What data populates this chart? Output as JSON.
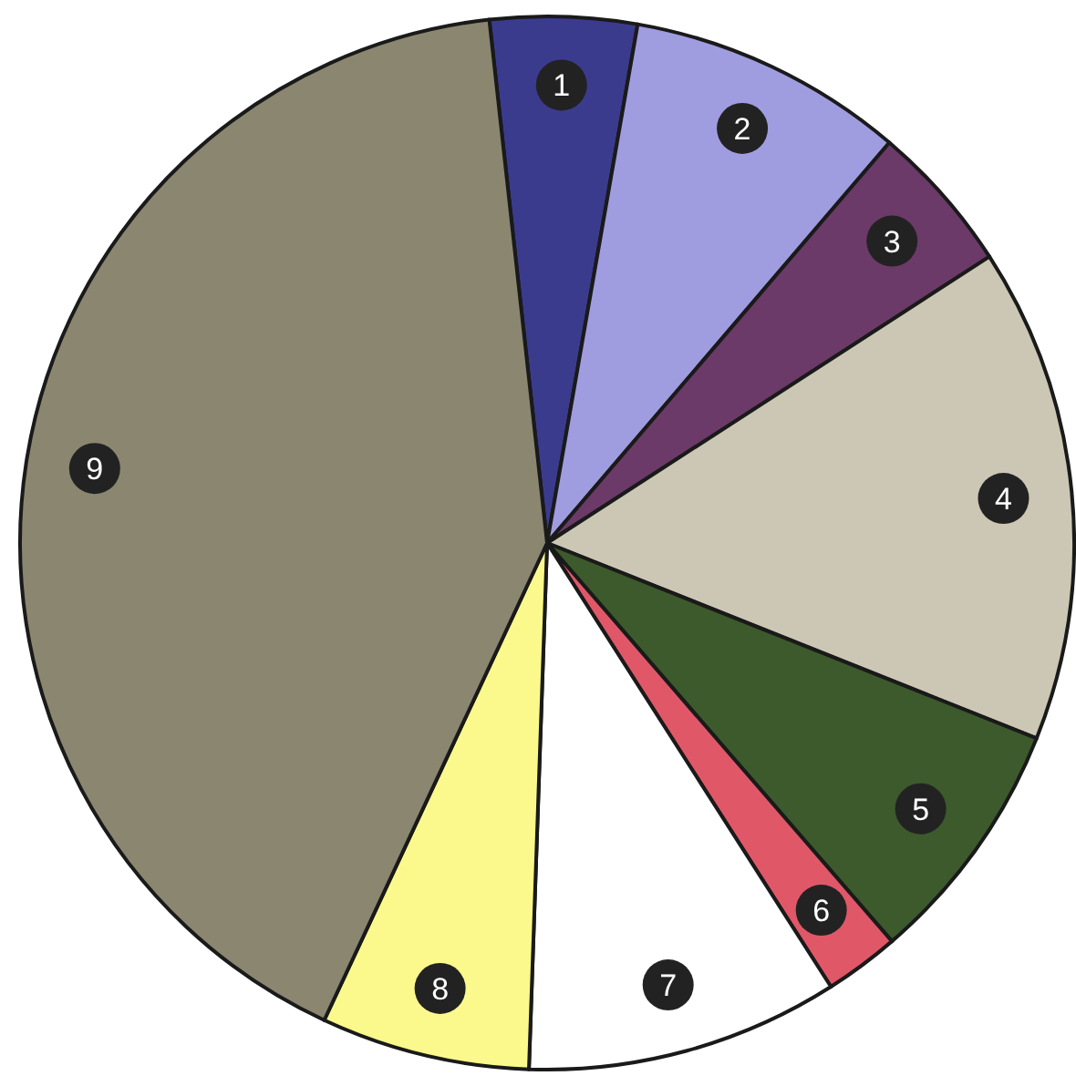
{
  "chart_data": {
    "type": "pie",
    "categories": [
      "1",
      "2",
      "3",
      "4",
      "5",
      "6",
      "7",
      "8",
      "9"
    ],
    "values": [
      4.5,
      8.5,
      4.6,
      15.2,
      7.6,
      2.3,
      9.6,
      6.4,
      41.3
    ],
    "colors": [
      "#3b3b8e",
      "#a09ce0",
      "#6b3a68",
      "#cbc7b4",
      "#3c5a2c",
      "#e05868",
      "#ffffff",
      "#fbf98c",
      "#8a8670"
    ]
  }
}
